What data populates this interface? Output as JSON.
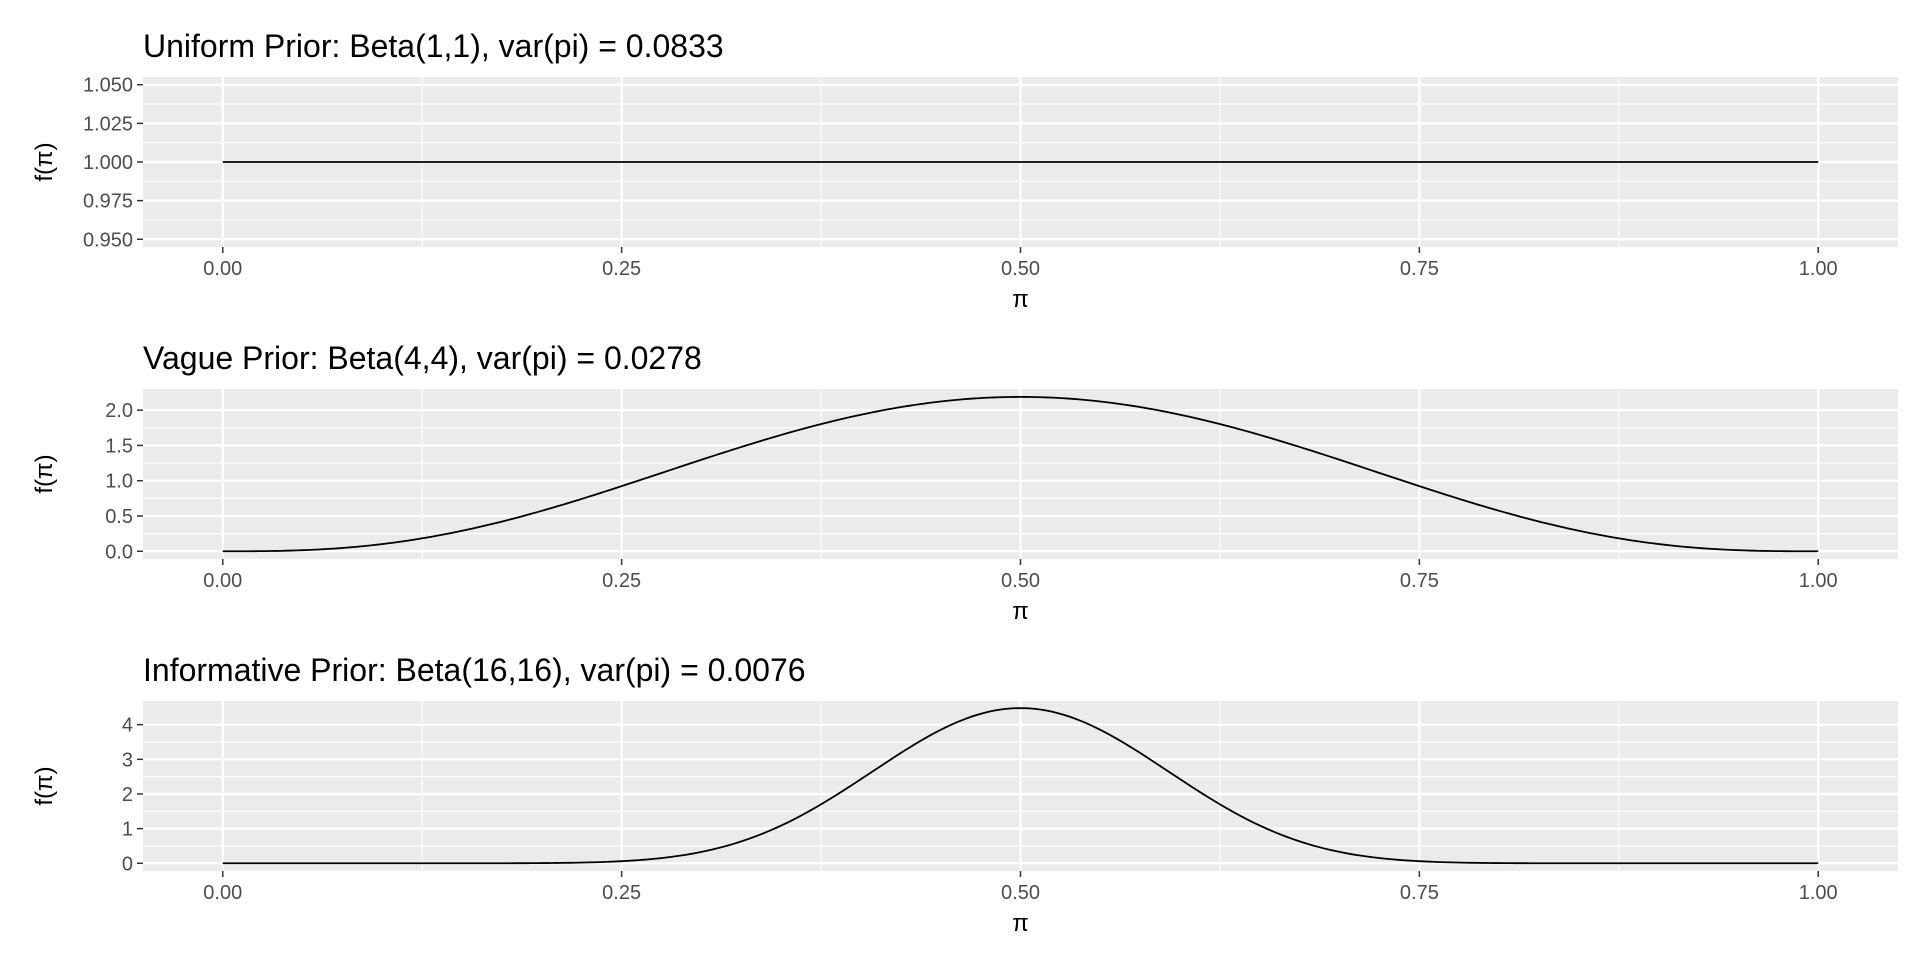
{
  "chart_data": [
    {
      "type": "line",
      "title": "Uniform Prior: Beta(1,1), var(pi) = 0.0833",
      "distribution": {
        "family": "beta",
        "alpha": 1,
        "beta": 1
      },
      "xlabel": "π",
      "ylabel": "f(π)",
      "xlim": [
        0,
        1
      ],
      "ylim": [
        0.95,
        1.05
      ],
      "x_ticks": [
        0,
        0.25,
        0.5,
        0.75,
        1
      ],
      "x_tick_labels": [
        "0.00",
        "0.25",
        "0.50",
        "0.75",
        "1.00"
      ],
      "y_ticks": [
        0.95,
        0.975,
        1.0,
        1.025,
        1.05
      ],
      "y_tick_labels": [
        "0.950",
        "0.975",
        "1.000",
        "1.025",
        "1.050"
      ],
      "series": [
        {
          "x": [
            0,
            0.1,
            0.2,
            0.3,
            0.4,
            0.5,
            0.6,
            0.7,
            0.8,
            0.9,
            1.0
          ],
          "y": [
            1,
            1,
            1,
            1,
            1,
            1,
            1,
            1,
            1,
            1,
            1
          ]
        }
      ],
      "grid": true,
      "panel_background": "#ebebeb",
      "line_color": "#000000"
    },
    {
      "type": "line",
      "title": "Vague Prior: Beta(4,4), var(pi) = 0.0278",
      "distribution": {
        "family": "beta",
        "alpha": 4,
        "beta": 4
      },
      "xlabel": "π",
      "ylabel": "f(π)",
      "xlim": [
        0,
        1
      ],
      "ylim": [
        0,
        2.19
      ],
      "x_ticks": [
        0,
        0.25,
        0.5,
        0.75,
        1
      ],
      "x_tick_labels": [
        "0.00",
        "0.25",
        "0.50",
        "0.75",
        "1.00"
      ],
      "y_ticks": [
        0,
        0.5,
        1.0,
        1.5,
        2.0
      ],
      "y_tick_labels": [
        "0.0",
        "0.5",
        "1.0",
        "1.5",
        "2.0"
      ],
      "series": [
        {
          "x": [
            0,
            0.1,
            0.2,
            0.25,
            0.3,
            0.4,
            0.5,
            0.6,
            0.7,
            0.75,
            0.8,
            0.9,
            1.0
          ],
          "y": [
            0,
            0.1,
            0.57,
            0.92,
            1.29,
            1.94,
            2.19,
            1.94,
            1.29,
            0.92,
            0.57,
            0.1,
            0
          ]
        }
      ],
      "grid": true,
      "panel_background": "#ebebeb",
      "line_color": "#000000"
    },
    {
      "type": "line",
      "title": "Informative Prior: Beta(16,16), var(pi) = 0.0076",
      "distribution": {
        "family": "beta",
        "alpha": 16,
        "beta": 16
      },
      "xlabel": "π",
      "ylabel": "f(π)",
      "xlim": [
        0,
        1
      ],
      "ylim": [
        0,
        4.46
      ],
      "x_ticks": [
        0,
        0.25,
        0.5,
        0.75,
        1
      ],
      "x_tick_labels": [
        "0.00",
        "0.25",
        "0.50",
        "0.75",
        "1.00"
      ],
      "y_ticks": [
        0,
        1,
        2,
        3,
        4
      ],
      "y_tick_labels": [
        "0",
        "1",
        "2",
        "3",
        "4"
      ],
      "series": [
        {
          "x": [
            0,
            0.2,
            0.25,
            0.3,
            0.35,
            0.4,
            0.45,
            0.5,
            0.55,
            0.6,
            0.65,
            0.7,
            0.75,
            0.8,
            1.0
          ],
          "y": [
            0,
            0.01,
            0.05,
            0.28,
            0.91,
            2.09,
            3.64,
            4.46,
            3.64,
            2.09,
            0.91,
            0.28,
            0.05,
            0.01,
            0
          ]
        }
      ],
      "grid": true,
      "panel_background": "#ebebeb",
      "line_color": "#000000"
    }
  ]
}
